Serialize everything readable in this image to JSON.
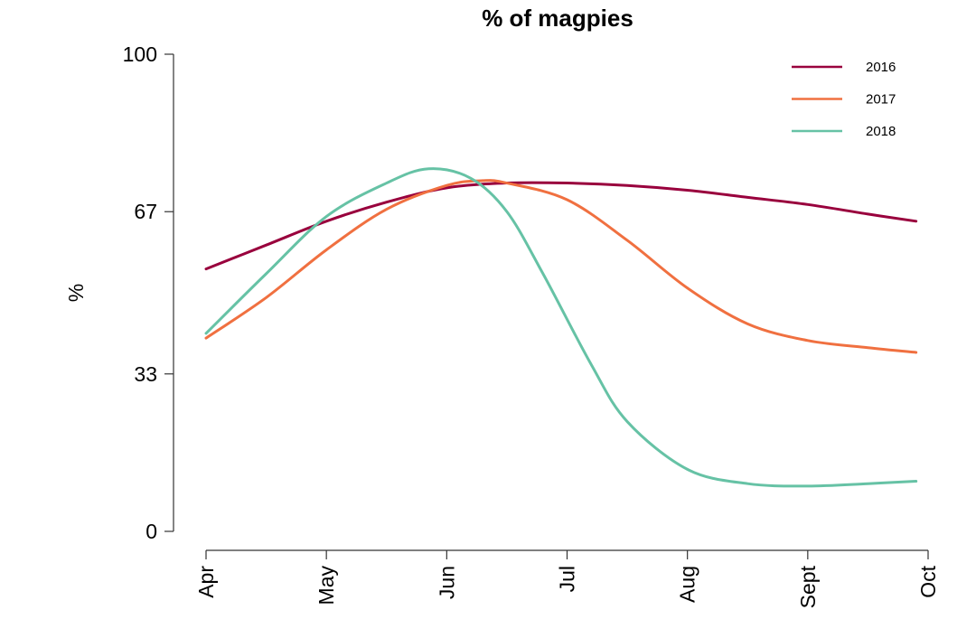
{
  "chart_data": {
    "type": "line",
    "title": "% of magpies",
    "xlabel": "",
    "ylabel": "%",
    "ylim": [
      0,
      100
    ],
    "yticks": [
      0,
      33,
      67,
      100
    ],
    "xticks": [
      "Apr",
      "May",
      "Jun",
      "Jul",
      "Aug",
      "Sept",
      "Oct"
    ],
    "x_unit": "month index (Apr = 0)",
    "xlim": [
      0,
      6
    ],
    "legend_position": "top-right",
    "grid": false,
    "series": [
      {
        "name": "2016",
        "color": "#99003d",
        "x": [
          0,
          0.5,
          1,
          1.5,
          2,
          2.5,
          3,
          3.5,
          4,
          4.5,
          5,
          5.5,
          5.9
        ],
        "y": [
          55,
          60,
          65,
          69,
          72,
          73,
          73,
          72.5,
          71.5,
          70,
          68.5,
          66.5,
          65
        ]
      },
      {
        "name": "2017",
        "color": "#f07040",
        "x": [
          0,
          0.5,
          1,
          1.5,
          2,
          2.3,
          2.5,
          3,
          3.5,
          4,
          4.5,
          5,
          5.5,
          5.9
        ],
        "y": [
          40.5,
          49,
          59,
          67.5,
          72.5,
          73.5,
          73,
          69.5,
          61,
          51,
          43.5,
          40,
          38.5,
          37.5
        ]
      },
      {
        "name": "2018",
        "color": "#66c2a5",
        "x": [
          0,
          0.5,
          1,
          1.5,
          1.85,
          2.2,
          2.5,
          2.8,
          3.2,
          3.5,
          4,
          4.5,
          5,
          5.5,
          5.9
        ],
        "y": [
          41.5,
          54,
          66,
          73,
          76,
          74,
          67,
          54,
          35,
          23,
          13,
          10,
          9.5,
          10,
          10.5
        ]
      }
    ]
  }
}
